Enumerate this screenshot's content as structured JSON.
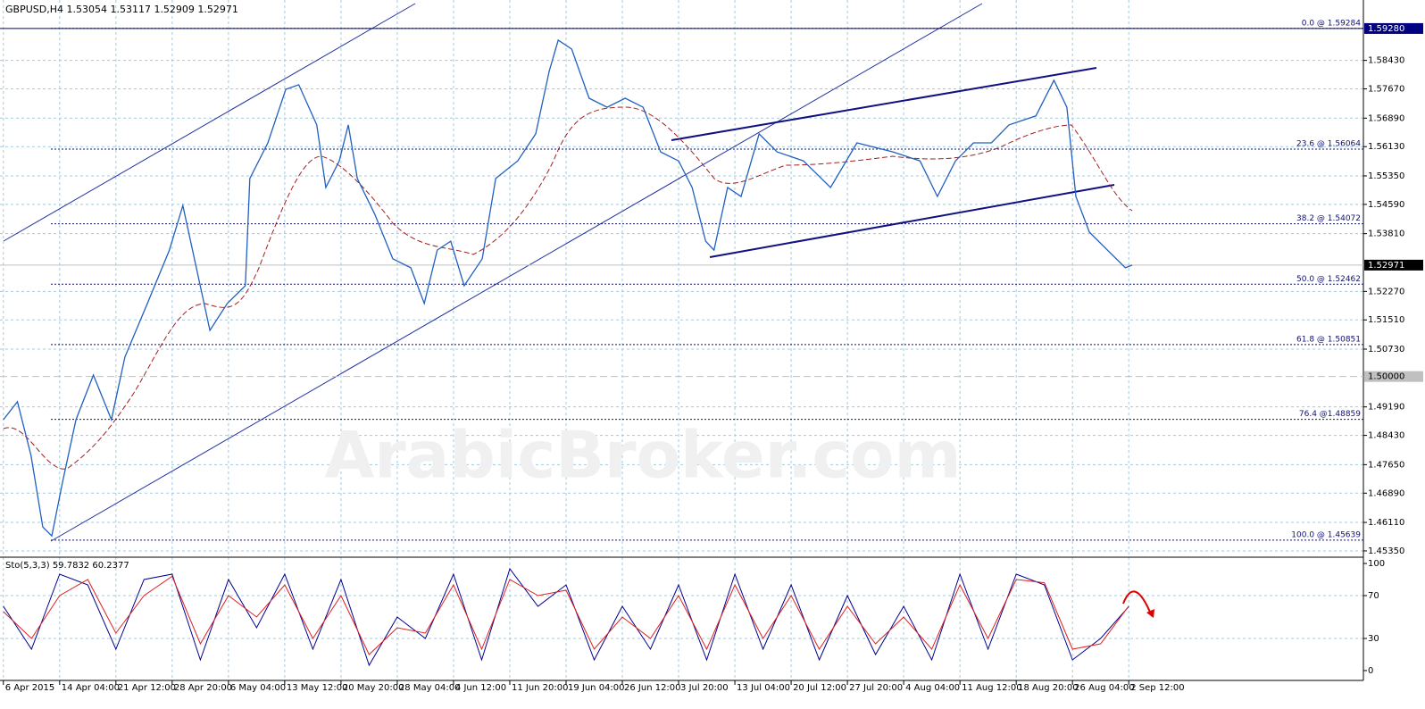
{
  "chart_data": [
    {
      "type": "line",
      "title": "GBPUSD,H4  1.53054 1.53117 1.52909 1.52971",
      "watermark": "ArabicBroker.com",
      "xlim": [
        -0.06,
        24.17
      ],
      "ylim": [
        1.4523,
        1.6004
      ],
      "grid": true,
      "xticks": [
        {
          "value": 0,
          "label": "6 Apr 2015"
        },
        {
          "value": 1,
          "label": "14 Apr 04:00"
        },
        {
          "value": 2,
          "label": "21 Apr 12:00"
        },
        {
          "value": 3,
          "label": "28 Apr 20:00"
        },
        {
          "value": 4,
          "label": "6 May 04:00"
        },
        {
          "value": 5,
          "label": "13 May 12:00"
        },
        {
          "value": 6,
          "label": "20 May 20:00"
        },
        {
          "value": 7,
          "label": "28 May 04:00"
        },
        {
          "value": 8,
          "label": "4 Jun 12:00"
        },
        {
          "value": 9,
          "label": "11 Jun 20:00"
        },
        {
          "value": 10,
          "label": "19 Jun 04:00"
        },
        {
          "value": 11,
          "label": "26 Jun 12:00"
        },
        {
          "value": 12,
          "label": "3 Jul 20:00"
        },
        {
          "value": 13,
          "label": "13 Jul 04:00"
        },
        {
          "value": 14,
          "label": "20 Jul 12:00"
        },
        {
          "value": 15,
          "label": "27 Jul 20:00"
        },
        {
          "value": 16,
          "label": "4 Aug 04:00"
        },
        {
          "value": 17,
          "label": "11 Aug 12:00"
        },
        {
          "value": 18,
          "label": "18 Aug 20:00"
        },
        {
          "value": 19,
          "label": "26 Aug 04:00"
        },
        {
          "value": 20,
          "label": "2 Sep 12:00"
        }
      ],
      "yticks": [
        {
          "value": 1.5843,
          "label": "1.58430"
        },
        {
          "value": 1.5767,
          "label": "1.57670"
        },
        {
          "value": 1.5689,
          "label": "1.56890"
        },
        {
          "value": 1.5613,
          "label": "1.56130"
        },
        {
          "value": 1.5535,
          "label": "1.55350"
        },
        {
          "value": 1.5459,
          "label": "1.54590"
        },
        {
          "value": 1.5381,
          "label": "1.53810"
        },
        {
          "value": 1.5227,
          "label": "1.52270"
        },
        {
          "value": 1.5151,
          "label": "1.51510"
        },
        {
          "value": 1.5073,
          "label": "1.50730"
        },
        {
          "value": 1.4919,
          "label": "1.49190"
        },
        {
          "value": 1.4843,
          "label": "1.48430"
        },
        {
          "value": 1.4765,
          "label": "1.47650"
        },
        {
          "value": 1.4689,
          "label": "1.46890"
        },
        {
          "value": 1.4611,
          "label": "1.46110"
        },
        {
          "value": 1.4535,
          "label": "1.45350"
        }
      ],
      "hlines": [
        {
          "value": 1.5928,
          "label": "1.59280",
          "color": "#000080"
        },
        {
          "value": 1.5,
          "label": "1.50000",
          "color": "#c0c0c0"
        }
      ],
      "current_price": 1.52971,
      "fib_levels": [
        {
          "value": 1.59284,
          "label": "0.0 @ 1.59284"
        },
        {
          "value": 1.56064,
          "label": "23.6 @ 1.56064"
        },
        {
          "value": 1.54072,
          "label": "38.2 @ 1.54072"
        },
        {
          "value": 1.52462,
          "label": "50.0 @ 1.52462"
        },
        {
          "value": 1.50851,
          "label": "61.8 @ 1.50851"
        },
        {
          "value": 1.48859,
          "label": "76.4 @1.48859"
        },
        {
          "value": 1.45639,
          "label": "100.0 @ 1.45639"
        }
      ],
      "series": [
        {
          "color": "#2060c0",
          "x": [
            0,
            0.25,
            0.49,
            0.7,
            0.86,
            1.05,
            1.29,
            1.6,
            1.92,
            2.16,
            2.56,
            2.95,
            3.19,
            3.43,
            3.67,
            3.98,
            4.3,
            4.38,
            4.7,
            5.02,
            5.25,
            5.57,
            5.73,
            5.97,
            6.13,
            6.29,
            6.6,
            6.92,
            7.24,
            7.48,
            7.71,
            7.95,
            8.19,
            8.51,
            8.75,
            9.14,
            9.46,
            9.7,
            9.86,
            10.1,
            10.41,
            10.73,
            11.05,
            11.37,
            11.68,
            12,
            12.24,
            12.48,
            12.63,
            12.87,
            13.11,
            13.43,
            13.75,
            14.22,
            14.7,
            15.17,
            15.81,
            16.29,
            16.6,
            16.92,
            17.24,
            17.56,
            17.87,
            18.35,
            18.67,
            18.9,
            19.06,
            19.3,
            19.62,
            19.94,
            20.06
          ],
          "values": [
            1.4885,
            1.4933,
            1.479,
            1.4599,
            1.4575,
            1.4718,
            1.4885,
            1.5004,
            1.4885,
            1.5052,
            1.5195,
            1.5337,
            1.5456,
            1.529,
            1.5123,
            1.5195,
            1.5242,
            1.5528,
            1.5623,
            1.5766,
            1.5778,
            1.5671,
            1.5504,
            1.5575,
            1.5671,
            1.5528,
            1.5433,
            1.5314,
            1.529,
            1.5195,
            1.5337,
            1.5361,
            1.5242,
            1.5314,
            1.5528,
            1.5575,
            1.5647,
            1.5814,
            1.5897,
            1.5873,
            1.5742,
            1.5718,
            1.5742,
            1.5718,
            1.5599,
            1.5575,
            1.5504,
            1.5361,
            1.5337,
            1.5504,
            1.548,
            1.5647,
            1.5599,
            1.5575,
            1.5504,
            1.5623,
            1.5599,
            1.5575,
            1.548,
            1.5575,
            1.5623,
            1.5623,
            1.5671,
            1.5695,
            1.579,
            1.5718,
            1.548,
            1.5385,
            1.5337,
            1.529,
            1.52971
          ]
        }
      ]
    },
    {
      "type": "line",
      "title": "Sto(5,3,3) 59.7832 60.2377",
      "xlim": [
        -0.06,
        24.17
      ],
      "ylim": [
        -9.2,
        104.2
      ],
      "yticks": [
        100,
        70,
        30,
        0
      ],
      "x": [
        0,
        0.5,
        1,
        1.5,
        2,
        2.5,
        3,
        3.5,
        4,
        4.5,
        5,
        5.5,
        6,
        6.5,
        7,
        7.5,
        8,
        8.5,
        9,
        9.5,
        10,
        10.5,
        11,
        11.5,
        12,
        12.5,
        13,
        13.5,
        14,
        14.5,
        15,
        15.5,
        16,
        16.5,
        17,
        17.5,
        18,
        18.5,
        19,
        19.5,
        20
      ],
      "series": [
        {
          "color": "#000090",
          "values": [
            60,
            20,
            90,
            80,
            20,
            85,
            90,
            10,
            85,
            40,
            90,
            20,
            85,
            5,
            50,
            30,
            90,
            10,
            95,
            60,
            80,
            10,
            60,
            20,
            80,
            10,
            90,
            20,
            80,
            10,
            70,
            15,
            60,
            10,
            90,
            20,
            90,
            80,
            10,
            30,
            59.7832
          ]
        },
        {
          "color": "#e02020",
          "values": [
            55,
            30,
            70,
            85,
            35,
            70,
            88,
            25,
            70,
            50,
            80,
            30,
            70,
            15,
            40,
            35,
            80,
            20,
            85,
            70,
            75,
            20,
            50,
            30,
            70,
            20,
            80,
            30,
            70,
            20,
            60,
            25,
            50,
            20,
            80,
            30,
            85,
            82,
            20,
            25,
            60.2377
          ]
        }
      ]
    }
  ]
}
